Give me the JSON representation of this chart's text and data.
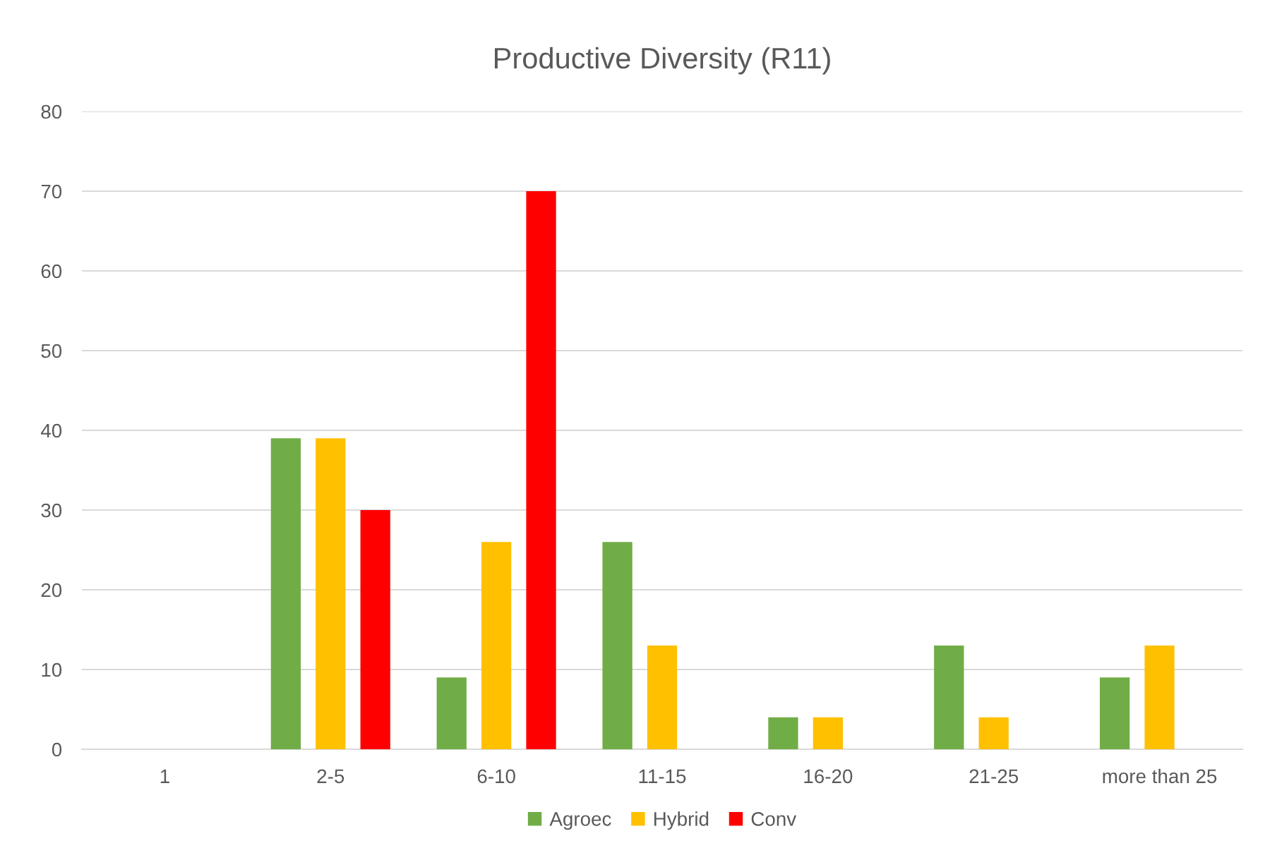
{
  "chart_data": {
    "type": "bar",
    "title": "Productive Diversity (R11)",
    "categories": [
      "1",
      "2-5",
      "6-10",
      "11-15",
      "16-20",
      "21-25",
      "more than 25"
    ],
    "series": [
      {
        "name": "Agroec",
        "color": "#70ad47",
        "values": [
          0,
          39,
          9,
          26,
          4,
          13,
          9
        ]
      },
      {
        "name": "Hybrid",
        "color": "#ffc000",
        "values": [
          0,
          39,
          26,
          13,
          4,
          4,
          13
        ]
      },
      {
        "name": "Conv",
        "color": "#ff0000",
        "values": [
          0,
          30,
          70,
          0,
          0,
          0,
          0
        ]
      }
    ],
    "ylim": [
      0,
      80
    ],
    "yticks": [
      0,
      10,
      20,
      30,
      40,
      50,
      60,
      70,
      80
    ],
    "grid": "y",
    "legend": "bottom"
  }
}
